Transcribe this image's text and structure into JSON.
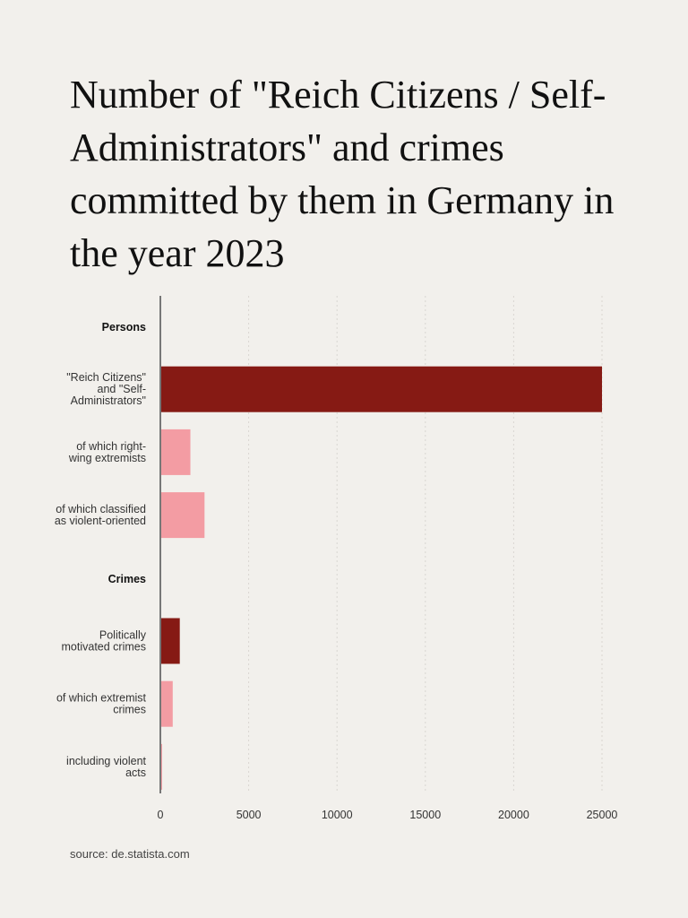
{
  "title": "Number of \"Reich Citizens / Self-Administrators\" and crimes committed by them in Germany in the year 2023",
  "source": "source: de.statista.com",
  "colors": {
    "background": "#f2f0ec",
    "primary": "#861a14",
    "secondary": "#f39ca3",
    "axis": "#777777",
    "grid": "#d9d6d1"
  },
  "chart_data": {
    "type": "bar",
    "orientation": "horizontal",
    "title": "Number of \"Reich Citizens / Self-Administrators\" and crimes committed by them in Germany in the year 2023",
    "xlabel": "",
    "ylabel": "",
    "xlim": [
      0,
      25000
    ],
    "xticks": [
      0,
      5000,
      10000,
      15000,
      20000,
      25000
    ],
    "grid": "vertical dotted",
    "legend": "none",
    "rows": [
      {
        "kind": "group",
        "label": "Persons"
      },
      {
        "kind": "bar",
        "label": [
          "\"Reich Citizens\"",
          "and \"Self-",
          "Administrators\""
        ],
        "value": 25000,
        "style": "primary"
      },
      {
        "kind": "bar",
        "label": [
          "of which right-",
          "wing extremists"
        ],
        "value": 1700,
        "style": "secondary"
      },
      {
        "kind": "bar",
        "label": [
          "of which classified",
          "as violent-oriented"
        ],
        "value": 2500,
        "style": "secondary"
      },
      {
        "kind": "group",
        "label": "Crimes"
      },
      {
        "kind": "bar",
        "label": [
          "Politically",
          "motivated crimes"
        ],
        "value": 1100,
        "style": "primary"
      },
      {
        "kind": "bar",
        "label": [
          "of which extremist",
          "crimes"
        ],
        "value": 700,
        "style": "secondary"
      },
      {
        "kind": "bar",
        "label": [
          "including violent",
          "acts"
        ],
        "value": 100,
        "style": "secondary"
      }
    ]
  }
}
